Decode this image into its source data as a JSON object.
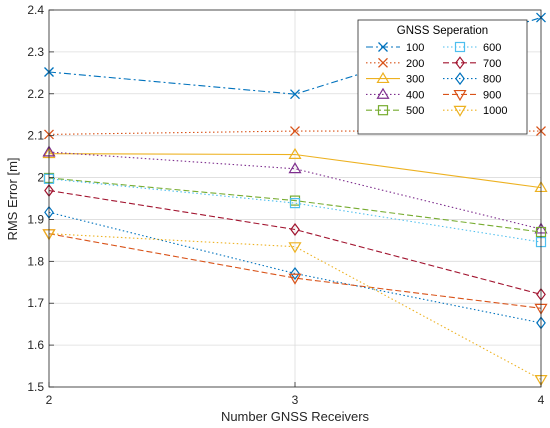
{
  "chart_data": {
    "type": "line",
    "xlabel": "Number GNSS Receivers",
    "ylabel": "RMS Error [m]",
    "x": [
      2,
      3,
      4
    ],
    "xlim": [
      2,
      4
    ],
    "ylim": [
      1.5,
      2.4
    ],
    "xticks": [
      "2",
      "3",
      "4"
    ],
    "yticks": [
      "1.5",
      "1.6",
      "1.7",
      "1.8",
      "1.9",
      "2",
      "2.1",
      "2.2",
      "2.3",
      "2.4"
    ],
    "grid": true,
    "legend": {
      "title": "GNSS Seperation",
      "placement": "top-right",
      "columns": 2
    },
    "series": [
      {
        "name": "100",
        "values": [
          2.252,
          2.199,
          2.382
        ],
        "color": "#0072BD",
        "marker": "x",
        "dash": "dashdot"
      },
      {
        "name": "200",
        "values": [
          2.103,
          2.111,
          2.111
        ],
        "color": "#D95319",
        "marker": "x",
        "dash": "dotted"
      },
      {
        "name": "300",
        "values": [
          2.057,
          2.055,
          1.976
        ],
        "color": "#EDB120",
        "marker": "triangle-up",
        "dash": "solid"
      },
      {
        "name": "400",
        "values": [
          2.061,
          2.021,
          1.877
        ],
        "color": "#7E2F8E",
        "marker": "triangle-up",
        "dash": "dotted"
      },
      {
        "name": "500",
        "values": [
          1.999,
          1.945,
          1.87
        ],
        "color": "#77AC30",
        "marker": "square",
        "dash": "dashed"
      },
      {
        "name": "600",
        "values": [
          1.997,
          1.939,
          1.846
        ],
        "color": "#4DBEEE",
        "marker": "square",
        "dash": "dotted"
      },
      {
        "name": "700",
        "values": [
          1.969,
          1.876,
          1.721
        ],
        "color": "#A2142F",
        "marker": "diamond",
        "dash": "dashed"
      },
      {
        "name": "800",
        "values": [
          1.917,
          1.771,
          1.653
        ],
        "color": "#0072BD",
        "marker": "diamond",
        "dash": "dotted"
      },
      {
        "name": "900",
        "values": [
          1.866,
          1.76,
          1.688
        ],
        "color": "#D95319",
        "marker": "triangle-down",
        "dash": "dashed"
      },
      {
        "name": "1000",
        "values": [
          1.866,
          1.835,
          1.518
        ],
        "color": "#EDB120",
        "marker": "triangle-down",
        "dash": "dotted"
      }
    ]
  }
}
